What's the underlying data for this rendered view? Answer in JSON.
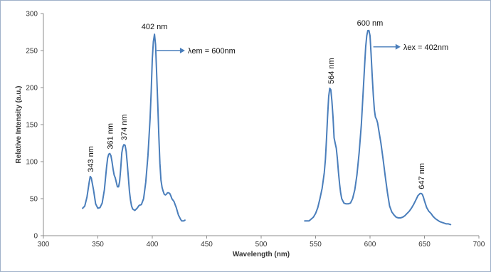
{
  "chart_data": {
    "type": "line",
    "title": "",
    "xlabel": "Wavelength (nm)",
    "ylabel": "Relative Intensity (a.u.)",
    "xlim": [
      300,
      700
    ],
    "ylim": [
      0,
      300
    ],
    "x_ticks": [
      300,
      350,
      400,
      450,
      500,
      550,
      600,
      650,
      700
    ],
    "y_ticks": [
      0,
      50,
      100,
      150,
      200,
      250,
      300
    ],
    "grid": false,
    "line_color": "#4a7ebb",
    "series": [
      {
        "x": [
          336,
          338,
          340,
          342,
          343,
          344,
          346,
          348,
          350,
          352,
          354,
          356,
          358,
          359,
          360,
          361,
          362,
          363,
          364,
          365,
          366,
          367,
          368,
          369,
          370,
          371,
          372,
          373,
          374,
          375,
          376,
          377,
          378,
          379,
          380,
          381,
          382,
          384,
          386,
          388,
          390,
          392,
          394,
          396,
          398,
          399,
          400,
          401,
          402,
          403,
          404,
          405,
          406,
          407,
          408,
          409,
          410,
          411,
          412,
          413,
          414,
          415,
          416,
          417,
          418,
          419,
          420,
          421,
          422,
          423,
          424,
          425,
          426,
          427,
          428,
          429,
          430
        ],
        "y": [
          37,
          40,
          52,
          72,
          80,
          78,
          62,
          43,
          37,
          38,
          44,
          62,
          92,
          105,
          110,
          111,
          108,
          100,
          90,
          82,
          78,
          72,
          66,
          66,
          73,
          90,
          112,
          120,
          123,
          122,
          114,
          98,
          80,
          60,
          48,
          40,
          36,
          34,
          37,
          41,
          42,
          50,
          72,
          108,
          158,
          195,
          238,
          262,
          272,
          258,
          220,
          178,
          135,
          98,
          75,
          65,
          60,
          56,
          55,
          56,
          58,
          58,
          57,
          54,
          50,
          48,
          46,
          42,
          38,
          33,
          28,
          25,
          22,
          20,
          20,
          20,
          21
        ]
      },
      {
        "x": [
          540,
          544,
          548,
          550,
          552,
          554,
          556,
          558,
          559,
          560,
          561,
          562,
          563,
          564,
          565,
          566,
          567,
          568,
          569,
          570,
          571,
          572,
          573,
          574,
          576,
          578,
          580,
          582,
          584,
          586,
          588,
          590,
          592,
          594,
          595,
          596,
          597,
          598,
          599,
          600,
          601,
          602,
          603,
          604,
          605,
          606,
          607,
          608,
          610,
          612,
          614,
          616,
          618,
          620,
          622,
          624,
          626,
          628,
          630,
          632,
          634,
          636,
          638,
          640,
          642,
          644,
          646,
          647,
          648,
          649,
          650,
          652,
          654,
          656,
          658,
          660,
          662,
          664,
          666,
          668,
          670,
          672,
          674
        ],
        "y": [
          20,
          20,
          25,
          30,
          38,
          50,
          64,
          85,
          103,
          130,
          160,
          188,
          199,
          197,
          182,
          160,
          132,
          125,
          118,
          104,
          86,
          70,
          58,
          50,
          44,
          43,
          43,
          44,
          50,
          62,
          82,
          112,
          150,
          202,
          230,
          255,
          270,
          277,
          277,
          270,
          245,
          215,
          190,
          170,
          160,
          157,
          152,
          143,
          125,
          103,
          80,
          58,
          40,
          32,
          28,
          25,
          24,
          24,
          25,
          27,
          30,
          33,
          37,
          42,
          48,
          54,
          57,
          57,
          56,
          52,
          47,
          38,
          33,
          30,
          26,
          23,
          21,
          19,
          18,
          17,
          16,
          16,
          15
        ]
      }
    ],
    "peak_labels": [
      {
        "text": "343 nm",
        "x": 343,
        "y": 80,
        "rotated": true
      },
      {
        "text": "361 nm",
        "x": 361,
        "y": 111,
        "rotated": true
      },
      {
        "text": "374 nm",
        "x": 374,
        "y": 123,
        "rotated": true
      },
      {
        "text": "402 nm",
        "x": 402,
        "y": 272,
        "rotated": false
      },
      {
        "text": "564 nm",
        "x": 564,
        "y": 199,
        "rotated": true
      },
      {
        "text": "600 nm",
        "x": 600,
        "y": 277,
        "rotated": false
      },
      {
        "text": "647 nm",
        "x": 647,
        "y": 57,
        "rotated": true
      }
    ],
    "annotations": [
      {
        "text": "λem = 600nm",
        "x_start": 404,
        "x_end": 430,
        "y": 250
      },
      {
        "text": "λex = 402nm",
        "x_start": 603,
        "x_end": 628,
        "y": 255
      }
    ]
  }
}
